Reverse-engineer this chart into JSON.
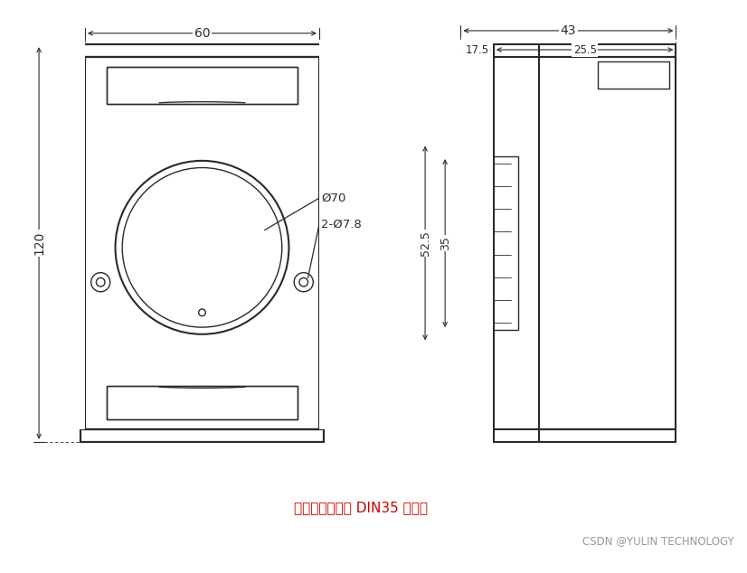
{
  "bg_color": "#ffffff",
  "line_color": "#2a2a2a",
  "red_text_color": "#cc0000",
  "gray_text_color": "#999999",
  "annotations": {
    "phi70": "Ø70",
    "phi78": "2-Ø7.8",
    "dim_60": "60",
    "dim_120": "120",
    "dim_43": "43",
    "dim_17_5": "17.5",
    "dim_25_5": "25.5",
    "dim_52_5": "52.5",
    "dim_35": "35",
    "bottom_text": "可以安装在标准 DIN35 导轨上",
    "watermark": "CSDN @YULIN TECHNOLOGY"
  }
}
